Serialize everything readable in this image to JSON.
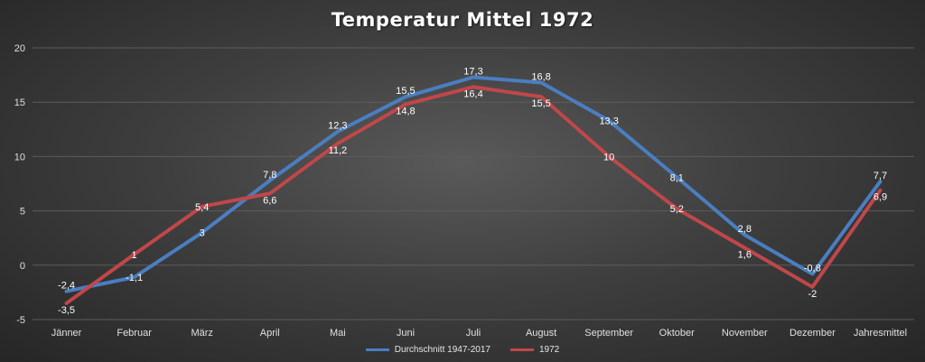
{
  "chart_data": {
    "type": "line",
    "title": "Temperatur Mittel 1972",
    "categories": [
      "Jänner",
      "Februar",
      "März",
      "April",
      "Mai",
      "Juni",
      "Juli",
      "August",
      "September",
      "Oktober",
      "November",
      "Dezember",
      "Jahresmittel"
    ],
    "ylim": [
      -5,
      20
    ],
    "yticks": [
      -5,
      0,
      5,
      10,
      15,
      20
    ],
    "grid": true,
    "legend_position": "bottom",
    "series": [
      {
        "name": "Durchschnitt 1947-2017",
        "color": "#4a7ec0",
        "values": [
          -2.4,
          -1.1,
          3,
          7.8,
          12.3,
          15.5,
          17.3,
          16.8,
          13.3,
          8.1,
          2.8,
          -0.8,
          7.7
        ],
        "labels": [
          "-2,4",
          "-1,1",
          "3",
          "7,8",
          "12,3",
          "15,5",
          "17,3",
          "16,8",
          "13,3",
          "8,1",
          "2,8",
          "-0,8",
          "7,7"
        ]
      },
      {
        "name": "1972",
        "color": "#c0474a",
        "values": [
          -3.5,
          1,
          5.4,
          6.6,
          11.2,
          14.8,
          16.4,
          15.5,
          10,
          5.2,
          1.6,
          -2,
          6.9
        ],
        "labels": [
          "-3,5",
          "1",
          "5,4",
          "6,6",
          "11,2",
          "14,8",
          "16,4",
          "15,5",
          "10",
          "5,2",
          "1,6",
          "-2",
          "6,9"
        ]
      }
    ]
  }
}
